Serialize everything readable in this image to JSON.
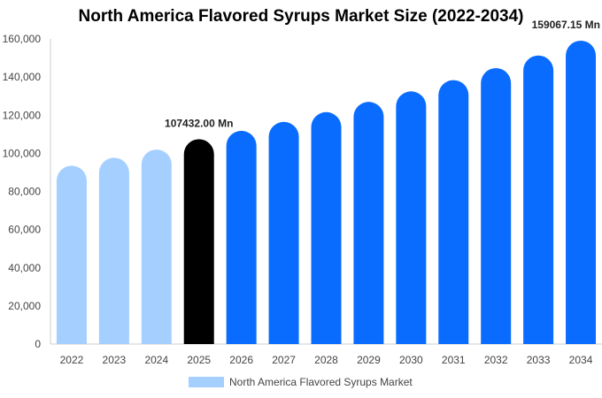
{
  "chart_data": {
    "type": "bar",
    "title": "North America Flavored Syrups Market Size (2022-2034)",
    "categories": [
      "2022",
      "2023",
      "2024",
      "2025",
      "2026",
      "2027",
      "2028",
      "2029",
      "2030",
      "2031",
      "2032",
      "2033",
      "2034"
    ],
    "series": [
      {
        "name": "North America Flavored Syrups Market",
        "values": [
          93500,
          97700,
          102000,
          107432,
          111800,
          116500,
          121600,
          127000,
          132500,
          138400,
          144700,
          151300,
          159067.15
        ]
      }
    ],
    "ylim": [
      0,
      160000
    ],
    "yticks": [
      "0",
      "20,000",
      "40,000",
      "60,000",
      "80,000",
      "100,000",
      "120,000",
      "140,000",
      "160,000"
    ],
    "data_labels": [
      {
        "index": 3,
        "text": "107432.00 Mn"
      },
      {
        "index": 12,
        "text": "159067.15 Mn"
      }
    ],
    "colors": {
      "historic": "#a4cfff",
      "current": "#000000",
      "forecast": "#0a6cff"
    },
    "legend_position": "bottom-center",
    "grid": false
  }
}
